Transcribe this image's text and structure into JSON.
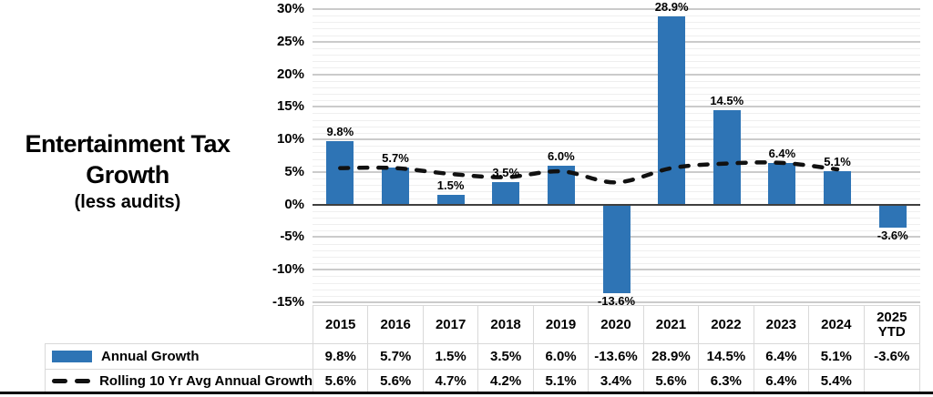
{
  "title": {
    "line1": "Entertainment Tax",
    "line2": "Growth",
    "subtitle": "(less audits)"
  },
  "colors": {
    "bar": "#2E74B5",
    "line": "#111111",
    "grid_major": "#cbcbcb",
    "grid_minor": "#efefef",
    "zero_line": "#3f3f3f",
    "table_border": "#d9d9d9",
    "bottom_rule": "#000000",
    "text": "#000000"
  },
  "chart_data": {
    "type": "bar",
    "title": "Entertainment Tax Growth (less audits)",
    "categories": [
      "2015",
      "2016",
      "2017",
      "2018",
      "2019",
      "2020",
      "2021",
      "2022",
      "2023",
      "2024",
      "2025 YTD"
    ],
    "series": [
      {
        "name": "Annual Growth",
        "type": "bar",
        "color": "#2E74B5",
        "values": [
          9.8,
          5.7,
          1.5,
          3.5,
          6.0,
          -13.6,
          28.9,
          14.5,
          6.4,
          5.1,
          -3.6
        ],
        "labels": [
          "9.8%",
          "5.7%",
          "1.5%",
          "3.5%",
          "6.0%",
          "-13.6%",
          "28.9%",
          "14.5%",
          "6.4%",
          "5.1%",
          "-3.6%"
        ]
      },
      {
        "name": "Rolling 10 Yr Avg Annual Growth",
        "type": "line",
        "style": "dashed",
        "color": "#111111",
        "values": [
          5.6,
          5.6,
          4.7,
          4.2,
          5.1,
          3.4,
          5.6,
          6.3,
          6.4,
          5.4,
          null
        ],
        "labels": [
          "5.6%",
          "5.6%",
          "4.7%",
          "4.2%",
          "5.1%",
          "3.4%",
          "5.6%",
          "6.3%",
          "6.4%",
          "5.4%",
          ""
        ]
      }
    ],
    "y_axis": {
      "min": -15,
      "max": 30,
      "major_step": 5,
      "minor_step": 1,
      "tick_labels": [
        "30%",
        "25%",
        "20%",
        "15%",
        "10%",
        "5%",
        "0%",
        "-5%",
        "-10%",
        "-15%"
      ]
    },
    "grid": "major+minor",
    "legend_position": "bottom-left",
    "data_labels": "outside-end"
  }
}
